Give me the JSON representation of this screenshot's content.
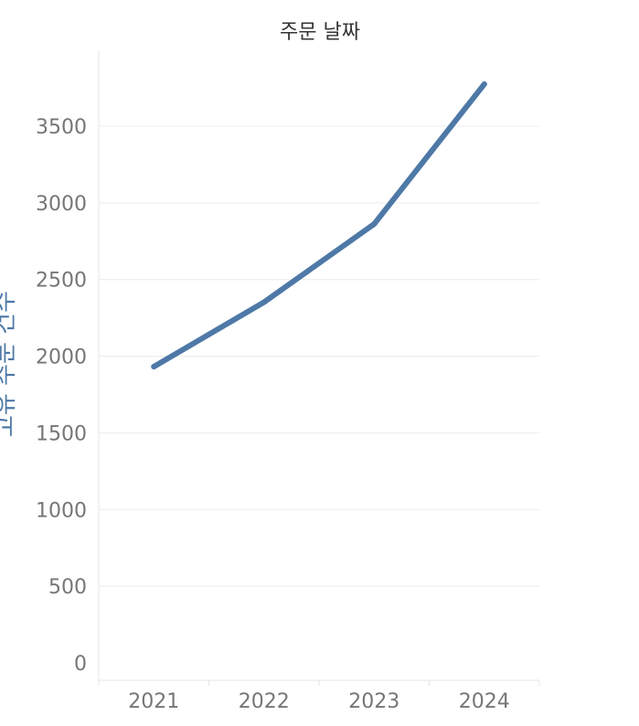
{
  "chart_data": {
    "type": "line",
    "title": "주문 날짜",
    "xlabel": "주문 날짜",
    "ylabel": "고유 주문 건수",
    "categories": [
      "2021",
      "2022",
      "2023",
      "2024"
    ],
    "series": [
      {
        "values": [
          1932,
          2352,
          2862,
          3774
        ]
      }
    ],
    "yticks": [
      0,
      500,
      1000,
      1500,
      2000,
      2500,
      3000,
      3500
    ],
    "ylim": [
      0,
      3900
    ],
    "grid": true,
    "colors": {
      "line": "#4e79a7"
    }
  }
}
